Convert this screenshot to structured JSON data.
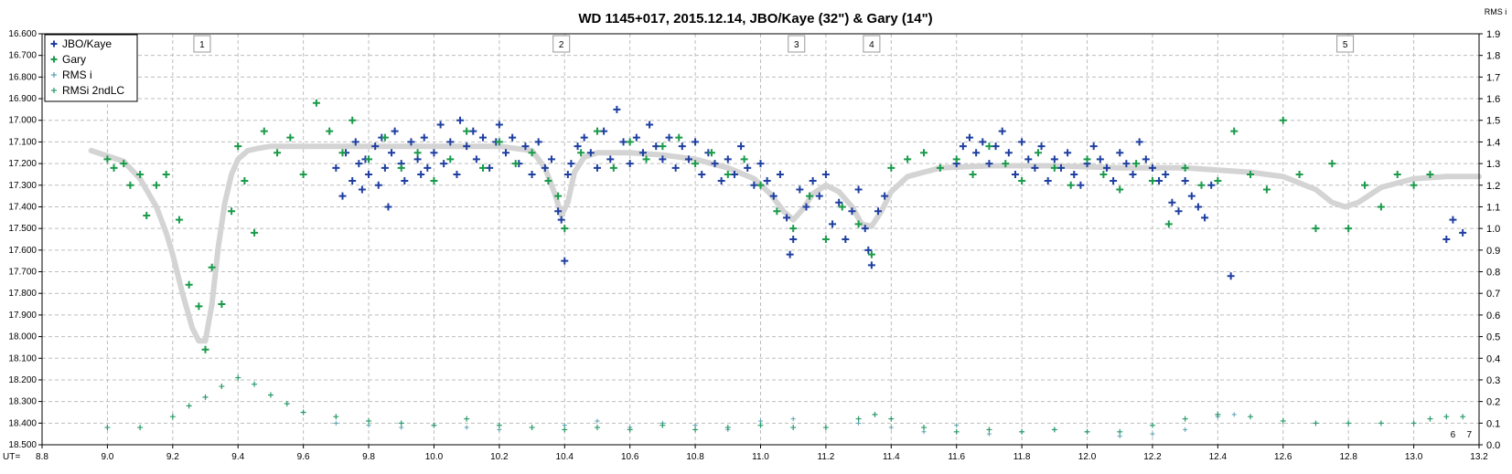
{
  "chart_data": {
    "type": "scatter",
    "title": "WD 1145+017, 2015.12.14, JBO/Kaye (32\") & Gary (14\")",
    "right_axis_label": "RMS i",
    "x_axis_prefix": "UT=",
    "xlim": [
      8.8,
      13.2
    ],
    "ylim_left": [
      18.5,
      16.6
    ],
    "ylim_right": [
      0.0,
      1.9
    ],
    "x_ticks": [
      "8.8",
      "9.0",
      "9.2",
      "9.4",
      "9.6",
      "9.8",
      "10.0",
      "10.2",
      "10.4",
      "10.6",
      "10.8",
      "11.0",
      "11.2",
      "11.4",
      "11.6",
      "11.8",
      "12.0",
      "12.2",
      "12.4",
      "12.6",
      "12.8",
      "13.0",
      "13.2"
    ],
    "y_left_ticks": [
      "16.600",
      "16.700",
      "16.800",
      "16.900",
      "17.000",
      "17.100",
      "17.200",
      "17.300",
      "17.400",
      "17.500",
      "17.600",
      "17.700",
      "17.800",
      "17.900",
      "18.000",
      "18.100",
      "18.200",
      "18.300",
      "18.400",
      "18.500"
    ],
    "y_right_ticks": [
      "1.9",
      "1.8",
      "1.7",
      "1.6",
      "1.5",
      "1.4",
      "1.3",
      "1.2",
      "1.1",
      "1.0",
      "0.9",
      "0.8",
      "0.7",
      "0.6",
      "0.5",
      "0.4",
      "0.3",
      "0.2",
      "0.1",
      "0.0"
    ],
    "grid": true,
    "legend_position": "top-left",
    "legend": [
      {
        "name": "JBO/Kaye",
        "color": "#1f3fa0"
      },
      {
        "name": "Gary",
        "color": "#1a9a4a"
      },
      {
        "name": "RMS i",
        "color": "#5aa0b0"
      },
      {
        "name": "RMSi 2ndLC",
        "color": "#2a9a6a"
      }
    ],
    "dip_labels": [
      {
        "label": "1",
        "x": 9.29
      },
      {
        "label": "2",
        "x": 10.39
      },
      {
        "label": "3",
        "x": 11.11
      },
      {
        "label": "4",
        "x": 11.34
      },
      {
        "label": "5",
        "x": 12.79
      }
    ],
    "corner_labels": [
      {
        "label": "6",
        "x": 13.12
      },
      {
        "label": "7",
        "x": 13.17
      }
    ],
    "colors": {
      "kaye": "#1f3fa0",
      "gary": "#1a9a4a",
      "model": "#d4d4d4",
      "rms_i": "#5aa0b0",
      "rms_2nd": "#2a9a6a",
      "grid": "#bdbdbd"
    },
    "model_curve": {
      "x": [
        8.95,
        9.05,
        9.1,
        9.15,
        9.18,
        9.2,
        9.23,
        9.26,
        9.28,
        9.3,
        9.32,
        9.34,
        9.36,
        9.38,
        9.4,
        9.43,
        9.46,
        9.5,
        9.55,
        9.6,
        9.7,
        9.8,
        9.9,
        10.0,
        10.1,
        10.2,
        10.3,
        10.34,
        10.37,
        10.39,
        10.41,
        10.43,
        10.46,
        10.5,
        10.6,
        10.7,
        10.8,
        10.9,
        10.98,
        11.03,
        11.07,
        11.1,
        11.13,
        11.16,
        11.2,
        11.24,
        11.28,
        11.31,
        11.34,
        11.37,
        11.4,
        11.45,
        11.55,
        11.7,
        11.9,
        12.1,
        12.3,
        12.5,
        12.6,
        12.7,
        12.75,
        12.79,
        12.83,
        12.9,
        13.0,
        13.1,
        13.2
      ],
      "y": [
        17.14,
        17.19,
        17.27,
        17.4,
        17.52,
        17.62,
        17.8,
        17.96,
        18.02,
        18.02,
        17.85,
        17.58,
        17.38,
        17.25,
        17.18,
        17.14,
        17.13,
        17.12,
        17.12,
        17.12,
        17.12,
        17.12,
        17.12,
        17.12,
        17.12,
        17.12,
        17.14,
        17.22,
        17.34,
        17.44,
        17.38,
        17.24,
        17.17,
        17.15,
        17.15,
        17.16,
        17.18,
        17.22,
        17.27,
        17.34,
        17.42,
        17.46,
        17.41,
        17.34,
        17.3,
        17.33,
        17.4,
        17.48,
        17.49,
        17.42,
        17.33,
        17.26,
        17.22,
        17.21,
        17.21,
        17.22,
        17.22,
        17.24,
        17.26,
        17.32,
        17.38,
        17.4,
        17.38,
        17.31,
        17.27,
        17.26,
        17.26
      ]
    },
    "series": [
      {
        "name": "JBO/Kaye",
        "axis": "left",
        "x": [
          9.7,
          9.72,
          9.73,
          9.75,
          9.76,
          9.77,
          9.78,
          9.79,
          9.8,
          9.82,
          9.83,
          9.84,
          9.85,
          9.86,
          9.87,
          9.88,
          9.9,
          9.91,
          9.93,
          9.95,
          9.96,
          9.97,
          9.98,
          10.0,
          10.02,
          10.03,
          10.05,
          10.07,
          10.08,
          10.1,
          10.12,
          10.13,
          10.15,
          10.17,
          10.19,
          10.2,
          10.22,
          10.24,
          10.26,
          10.28,
          10.3,
          10.32,
          10.34,
          10.36,
          10.38,
          10.39,
          10.4,
          10.41,
          10.42,
          10.44,
          10.46,
          10.48,
          10.5,
          10.52,
          10.54,
          10.56,
          10.58,
          10.6,
          10.62,
          10.64,
          10.66,
          10.68,
          10.7,
          10.72,
          10.74,
          10.76,
          10.78,
          10.8,
          10.82,
          10.84,
          10.86,
          10.88,
          10.9,
          10.92,
          10.94,
          10.96,
          10.98,
          11.0,
          11.02,
          11.04,
          11.06,
          11.08,
          11.09,
          11.1,
          11.12,
          11.14,
          11.16,
          11.18,
          11.2,
          11.22,
          11.24,
          11.26,
          11.28,
          11.3,
          11.32,
          11.33,
          11.34,
          11.36,
          11.38,
          11.6,
          11.62,
          11.64,
          11.66,
          11.68,
          11.7,
          11.72,
          11.74,
          11.76,
          11.78,
          11.8,
          11.82,
          11.84,
          11.86,
          11.88,
          11.9,
          11.92,
          11.94,
          11.96,
          11.98,
          12.0,
          12.02,
          12.04,
          12.06,
          12.08,
          12.1,
          12.12,
          12.14,
          12.16,
          12.18,
          12.2,
          12.22,
          12.24,
          12.26,
          12.28,
          12.3,
          12.32,
          12.34,
          12.36,
          12.38,
          12.44,
          13.1,
          13.12,
          13.15
        ],
        "y": [
          17.22,
          17.35,
          17.15,
          17.28,
          17.1,
          17.2,
          17.32,
          17.18,
          17.25,
          17.12,
          17.3,
          17.08,
          17.22,
          17.4,
          17.15,
          17.05,
          17.2,
          17.28,
          17.1,
          17.18,
          17.25,
          17.08,
          17.22,
          17.15,
          17.02,
          17.2,
          17.1,
          17.25,
          17.0,
          17.12,
          17.05,
          17.18,
          17.08,
          17.22,
          17.1,
          17.02,
          17.15,
          17.08,
          17.2,
          17.12,
          17.25,
          17.1,
          17.22,
          17.18,
          17.42,
          17.46,
          17.65,
          17.25,
          17.2,
          17.12,
          17.08,
          17.15,
          17.22,
          17.05,
          17.18,
          16.95,
          17.1,
          17.2,
          17.08,
          17.15,
          17.02,
          17.12,
          17.18,
          17.08,
          17.22,
          17.12,
          17.18,
          17.1,
          17.25,
          17.15,
          17.2,
          17.28,
          17.18,
          17.25,
          17.12,
          17.22,
          17.3,
          17.2,
          17.28,
          17.35,
          17.25,
          17.45,
          17.62,
          17.55,
          17.32,
          17.4,
          17.28,
          17.35,
          17.25,
          17.48,
          17.38,
          17.55,
          17.42,
          17.32,
          17.5,
          17.6,
          17.67,
          17.42,
          17.35,
          17.2,
          17.12,
          17.08,
          17.15,
          17.1,
          17.2,
          17.12,
          17.05,
          17.15,
          17.25,
          17.1,
          17.18,
          17.22,
          17.12,
          17.28,
          17.18,
          17.22,
          17.15,
          17.25,
          17.3,
          17.2,
          17.12,
          17.18,
          17.22,
          17.28,
          17.15,
          17.2,
          17.25,
          17.1,
          17.18,
          17.22,
          17.28,
          17.25,
          17.38,
          17.42,
          17.28,
          17.35,
          17.4,
          17.45,
          17.3,
          17.72,
          17.55,
          17.46,
          17.52
        ]
      },
      {
        "name": "Gary",
        "axis": "left",
        "x": [
          9.0,
          9.02,
          9.05,
          9.07,
          9.1,
          9.12,
          9.15,
          9.18,
          9.22,
          9.25,
          9.28,
          9.3,
          9.32,
          9.35,
          9.38,
          9.4,
          9.42,
          9.45,
          9.48,
          9.52,
          9.56,
          9.6,
          9.64,
          9.68,
          9.72,
          9.75,
          9.8,
          9.85,
          9.9,
          9.95,
          10.0,
          10.05,
          10.1,
          10.15,
          10.2,
          10.25,
          10.3,
          10.35,
          10.38,
          10.4,
          10.45,
          10.5,
          10.55,
          10.6,
          10.65,
          10.7,
          10.75,
          10.8,
          10.85,
          10.9,
          10.95,
          11.0,
          11.05,
          11.1,
          11.15,
          11.2,
          11.25,
          11.3,
          11.34,
          11.4,
          11.45,
          11.5,
          11.55,
          11.6,
          11.65,
          11.7,
          11.75,
          11.8,
          11.85,
          11.9,
          11.95,
          12.0,
          12.05,
          12.1,
          12.15,
          12.2,
          12.25,
          12.3,
          12.35,
          12.4,
          12.45,
          12.5,
          12.55,
          12.6,
          12.65,
          12.7,
          12.75,
          12.8,
          12.85,
          12.9,
          12.95,
          13.0,
          13.05
        ],
        "y": [
          17.18,
          17.22,
          17.2,
          17.3,
          17.25,
          17.44,
          17.3,
          17.25,
          17.46,
          17.76,
          17.86,
          18.06,
          17.68,
          17.85,
          17.42,
          17.12,
          17.28,
          17.52,
          17.05,
          17.15,
          17.08,
          17.25,
          16.92,
          17.05,
          17.15,
          17.0,
          17.18,
          17.08,
          17.22,
          17.15,
          17.28,
          17.18,
          17.05,
          17.22,
          17.1,
          17.2,
          17.15,
          17.28,
          17.35,
          17.5,
          17.15,
          17.05,
          17.22,
          17.1,
          17.18,
          17.12,
          17.08,
          17.2,
          17.15,
          17.25,
          17.18,
          17.3,
          17.42,
          17.5,
          17.35,
          17.55,
          17.4,
          17.48,
          17.62,
          17.22,
          17.18,
          17.15,
          17.22,
          17.18,
          17.25,
          17.12,
          17.2,
          17.28,
          17.15,
          17.22,
          17.3,
          17.18,
          17.25,
          17.32,
          17.2,
          17.28,
          17.48,
          17.22,
          17.3,
          17.28,
          17.05,
          17.25,
          17.32,
          17.0,
          17.25,
          17.5,
          17.2,
          17.5,
          17.3,
          17.4,
          17.25,
          17.3,
          17.25
        ]
      },
      {
        "name": "RMS i",
        "axis": "right",
        "x": [
          9.7,
          9.8,
          9.9,
          10.0,
          10.1,
          10.2,
          10.3,
          10.4,
          10.5,
          10.6,
          10.7,
          10.8,
          10.9,
          11.0,
          11.1,
          11.2,
          11.3,
          11.4,
          11.5,
          11.6,
          11.7,
          11.8,
          11.9,
          12.0,
          12.1,
          12.2,
          12.3,
          12.4,
          12.45
        ],
        "y": [
          0.1,
          0.09,
          0.08,
          0.09,
          0.08,
          0.07,
          0.08,
          0.09,
          0.11,
          0.08,
          0.1,
          0.09,
          0.07,
          0.11,
          0.12,
          0.08,
          0.1,
          0.08,
          0.06,
          0.09,
          0.05,
          0.06,
          0.07,
          0.06,
          0.04,
          0.05,
          0.07,
          0.13,
          0.14
        ]
      },
      {
        "name": "RMSi 2ndLC",
        "axis": "right",
        "x": [
          9.0,
          9.1,
          9.2,
          9.25,
          9.3,
          9.35,
          9.4,
          9.45,
          9.5,
          9.55,
          9.6,
          9.7,
          9.8,
          9.9,
          10.0,
          10.1,
          10.2,
          10.3,
          10.4,
          10.5,
          10.6,
          10.7,
          10.8,
          10.9,
          11.0,
          11.1,
          11.2,
          11.3,
          11.35,
          11.4,
          11.5,
          11.6,
          11.7,
          11.8,
          11.9,
          12.0,
          12.1,
          12.2,
          12.3,
          12.4,
          12.5,
          12.6,
          12.7,
          12.8,
          12.9,
          13.0,
          13.05,
          13.1,
          13.15
        ],
        "y": [
          0.08,
          0.08,
          0.13,
          0.18,
          0.22,
          0.27,
          0.31,
          0.28,
          0.23,
          0.19,
          0.15,
          0.13,
          0.11,
          0.1,
          0.09,
          0.12,
          0.09,
          0.08,
          0.07,
          0.08,
          0.07,
          0.09,
          0.07,
          0.08,
          0.09,
          0.08,
          0.08,
          0.12,
          0.14,
          0.12,
          0.08,
          0.06,
          0.07,
          0.06,
          0.07,
          0.06,
          0.06,
          0.09,
          0.12,
          0.14,
          0.13,
          0.11,
          0.1,
          0.1,
          0.1,
          0.1,
          0.12,
          0.13,
          0.13
        ]
      }
    ]
  }
}
